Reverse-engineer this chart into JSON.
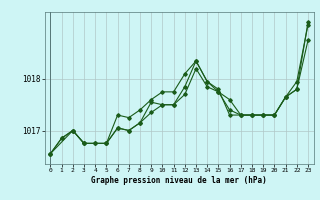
{
  "title": "Graphe pression niveau de la mer (hPa)",
  "bg_color": "#cef5f5",
  "grid_color": "#b0c8c8",
  "line_color": "#1a5c1a",
  "xlim": [
    -0.5,
    23.5
  ],
  "ylim": [
    1016.35,
    1019.3
  ],
  "yticks": [
    1017,
    1018
  ],
  "xticks": [
    0,
    1,
    2,
    3,
    4,
    5,
    6,
    7,
    8,
    9,
    10,
    11,
    12,
    13,
    14,
    15,
    16,
    17,
    18,
    19,
    20,
    21,
    22,
    23
  ],
  "series1": [
    [
      0,
      1016.55
    ],
    [
      1,
      1016.85
    ],
    [
      2,
      1017.0
    ],
    [
      3,
      1016.75
    ],
    [
      4,
      1016.75
    ],
    [
      5,
      1016.75
    ],
    [
      6,
      1017.05
    ],
    [
      7,
      1017.0
    ],
    [
      8,
      1017.15
    ],
    [
      9,
      1017.35
    ],
    [
      10,
      1017.5
    ],
    [
      11,
      1017.5
    ],
    [
      12,
      1017.7
    ],
    [
      13,
      1018.2
    ],
    [
      14,
      1017.85
    ],
    [
      15,
      1017.75
    ],
    [
      16,
      1017.4
    ],
    [
      17,
      1017.3
    ],
    [
      18,
      1017.3
    ],
    [
      19,
      1017.3
    ],
    [
      20,
      1017.3
    ],
    [
      21,
      1017.65
    ],
    [
      22,
      1017.95
    ],
    [
      23,
      1019.05
    ]
  ],
  "series2": [
    [
      0,
      1016.55
    ],
    [
      1,
      1016.85
    ],
    [
      2,
      1017.0
    ],
    [
      3,
      1016.75
    ],
    [
      4,
      1016.75
    ],
    [
      5,
      1016.75
    ],
    [
      6,
      1017.05
    ],
    [
      7,
      1017.0
    ],
    [
      8,
      1017.15
    ],
    [
      9,
      1017.55
    ],
    [
      10,
      1017.5
    ],
    [
      11,
      1017.5
    ],
    [
      12,
      1017.85
    ],
    [
      13,
      1018.35
    ],
    [
      14,
      1017.95
    ],
    [
      15,
      1017.75
    ],
    [
      16,
      1017.6
    ],
    [
      17,
      1017.3
    ],
    [
      18,
      1017.3
    ],
    [
      19,
      1017.3
    ],
    [
      20,
      1017.3
    ],
    [
      21,
      1017.65
    ],
    [
      22,
      1017.8
    ],
    [
      23,
      1018.75
    ]
  ],
  "series3": [
    [
      0,
      1016.55
    ],
    [
      2,
      1017.0
    ],
    [
      3,
      1016.75
    ],
    [
      5,
      1016.75
    ],
    [
      6,
      1017.3
    ],
    [
      7,
      1017.25
    ],
    [
      8,
      1017.4
    ],
    [
      9,
      1017.6
    ],
    [
      10,
      1017.75
    ],
    [
      11,
      1017.75
    ],
    [
      12,
      1018.1
    ],
    [
      13,
      1018.35
    ],
    [
      14,
      1017.95
    ],
    [
      15,
      1017.8
    ],
    [
      16,
      1017.3
    ],
    [
      17,
      1017.3
    ],
    [
      18,
      1017.3
    ],
    [
      19,
      1017.3
    ],
    [
      20,
      1017.3
    ],
    [
      21,
      1017.65
    ],
    [
      22,
      1017.8
    ],
    [
      23,
      1019.1
    ]
  ]
}
